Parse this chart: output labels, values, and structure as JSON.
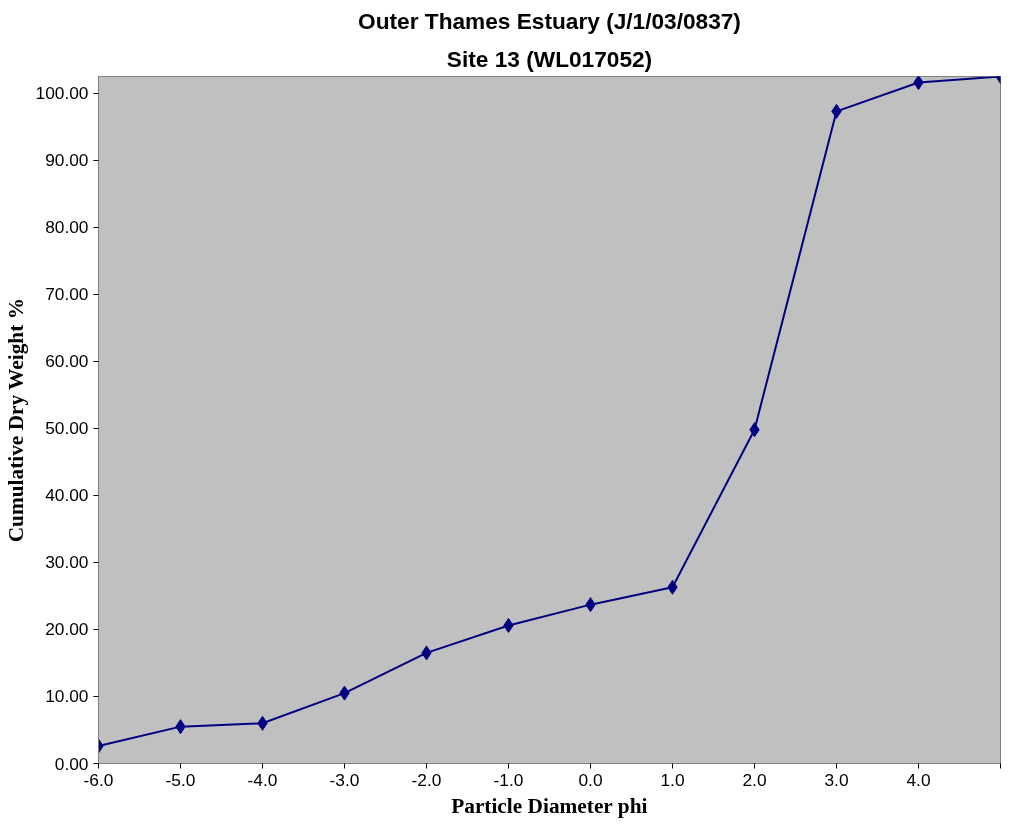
{
  "chart_data": {
    "type": "line",
    "title": "Outer Thames Estuary (J/1/03/0837)",
    "subtitle": "Site 13 (WL017052)",
    "xlabel": "Particle Diameter phi",
    "ylabel": "Cumulative Dry Weight %",
    "categories": [
      "-6.0",
      "-5.0",
      "-4.0",
      "-3.0",
      "-2.0",
      "-1.0",
      "0.0",
      "1.0",
      "2.0",
      "3.0",
      "4.0",
      null
    ],
    "series": [
      {
        "color": "#000080",
        "values": [
          2.6,
          5.5,
          6.0,
          10.5,
          16.5,
          20.6,
          23.7,
          26.3,
          49.8,
          97.3,
          101.6,
          102.5
        ]
      }
    ],
    "ylim": [
      0,
      102.5
    ],
    "yticks": [
      {
        "value": 0,
        "label": "0.00"
      },
      {
        "value": 10,
        "label": "10.00"
      },
      {
        "value": 20,
        "label": "20.00"
      },
      {
        "value": 30,
        "label": "30.00"
      },
      {
        "value": 40,
        "label": "40.00"
      },
      {
        "value": 50,
        "label": "50.00"
      },
      {
        "value": 60,
        "label": "60.00"
      },
      {
        "value": 70,
        "label": "70.00"
      },
      {
        "value": 80,
        "label": "80.00"
      },
      {
        "value": 90,
        "label": "90.00"
      },
      {
        "value": 100,
        "label": "100.00"
      }
    ],
    "marker": "diamond",
    "line_style": "solid",
    "grid": false
  }
}
